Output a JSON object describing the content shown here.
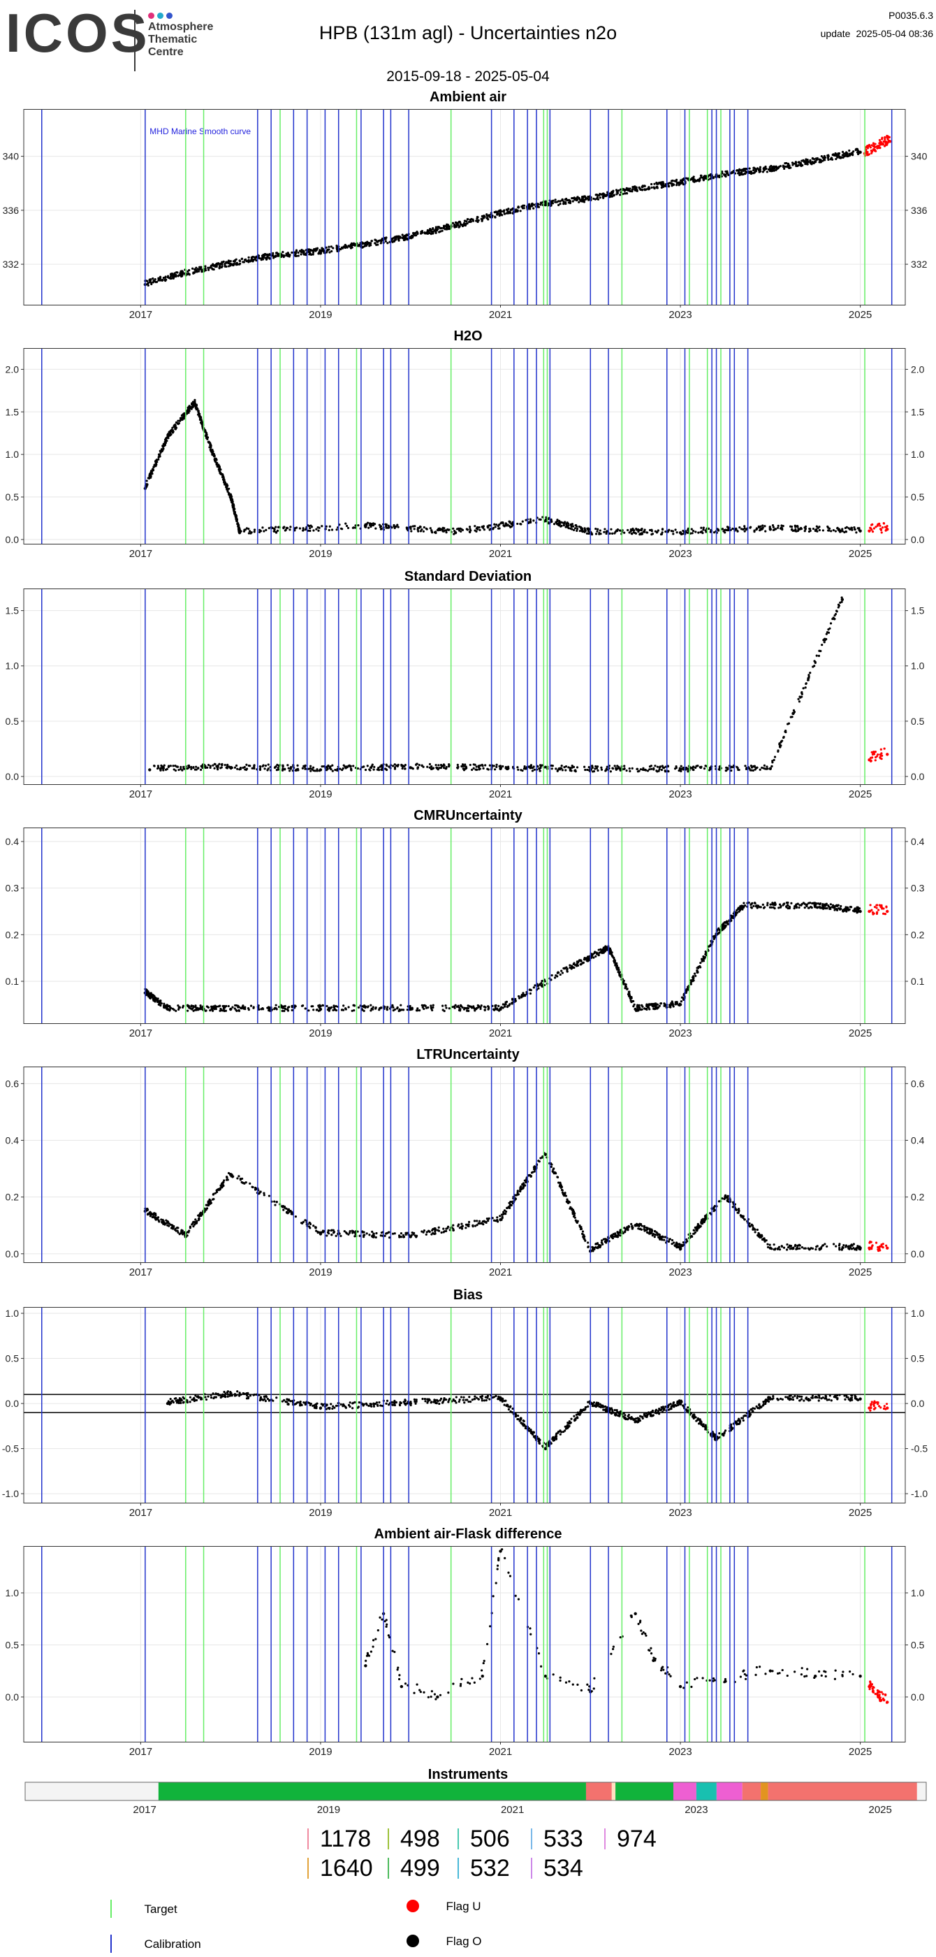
{
  "header": {
    "logo": "ICOS",
    "logo_sub": [
      "Atmosphere",
      "Thematic",
      "Centre"
    ],
    "logo_dot_colors": [
      "#e0307a",
      "#22aacc",
      "#3355cc"
    ],
    "title": "HPB  (131m agl) - Uncertainties n2o",
    "date_range": "2015-09-18 - 2025-05-04",
    "version": "P0035.6.3",
    "update_label": "update",
    "update_time": "2025-05-04 08:36"
  },
  "chart_data": [
    {
      "type": "scatter",
      "title": "Ambient air",
      "annotation": "MHD Marine Smooth curve",
      "x_ticks": [
        "2017",
        "2019",
        "2021",
        "2023",
        "2025"
      ],
      "y_ticks": [
        332,
        336,
        340
      ],
      "ylim": [
        329,
        343.5
      ],
      "series": [
        {
          "points": [
            [
              2017.05,
              330.5
            ],
            [
              2017.5,
              331.3
            ],
            [
              2018.0,
              332.0
            ],
            [
              2018.5,
              332.6
            ],
            [
              2019.0,
              332.9
            ],
            [
              2019.5,
              333.4
            ],
            [
              2020.0,
              334.0
            ],
            [
              2020.5,
              334.8
            ],
            [
              2021.0,
              335.7
            ],
            [
              2021.5,
              336.4
            ],
            [
              2022.0,
              336.8
            ],
            [
              2022.5,
              337.5
            ],
            [
              2023.0,
              338.0
            ],
            [
              2023.5,
              338.6
            ],
            [
              2024.0,
              339.0
            ],
            [
              2024.5,
              339.6
            ],
            [
              2025.0,
              340.3
            ]
          ]
        },
        {
          "color": "red",
          "points": [
            [
              2025.05,
              340.2
            ],
            [
              2025.15,
              340.5
            ],
            [
              2025.25,
              340.9
            ],
            [
              2025.33,
              341.1
            ]
          ]
        }
      ]
    },
    {
      "type": "scatter",
      "title": "H2O",
      "x_ticks": [
        "2017",
        "2019",
        "2021",
        "2023",
        "2025"
      ],
      "y_ticks": [
        "0.0",
        "0.5",
        "1.0",
        "1.5",
        "2.0"
      ],
      "ylim": [
        -0.05,
        2.25
      ],
      "series": [
        {
          "points": [
            [
              2017.05,
              0.6
            ],
            [
              2017.3,
              1.2
            ],
            [
              2017.6,
              1.6
            ],
            [
              2017.8,
              1.0
            ],
            [
              2018.0,
              0.5
            ],
            [
              2018.1,
              0.08
            ],
            [
              2019.5,
              0.15
            ],
            [
              2020.5,
              0.08
            ],
            [
              2021.5,
              0.22
            ],
            [
              2022.0,
              0.08
            ],
            [
              2023.0,
              0.08
            ],
            [
              2024.0,
              0.12
            ],
            [
              2025.0,
              0.1
            ]
          ]
        },
        {
          "color": "red",
          "points": [
            [
              2025.1,
              0.1
            ],
            [
              2025.3,
              0.12
            ]
          ]
        }
      ]
    },
    {
      "type": "scatter",
      "title": "Standard Deviation",
      "x_ticks": [
        "2017",
        "2019",
        "2021",
        "2023",
        "2025"
      ],
      "y_ticks": [
        "0.0",
        "0.5",
        "1.0",
        "1.5"
      ],
      "ylim": [
        -0.07,
        1.7
      ],
      "series": [
        {
          "points": [
            [
              2017.1,
              0.06
            ],
            [
              2018.0,
              0.08
            ],
            [
              2019.0,
              0.06
            ],
            [
              2020.0,
              0.08
            ],
            [
              2021.0,
              0.07
            ],
            [
              2022.0,
              0.06
            ],
            [
              2023.0,
              0.06
            ],
            [
              2024.0,
              0.07
            ],
            [
              2024.8,
              1.6
            ]
          ]
        },
        {
          "color": "red",
          "points": [
            [
              2025.1,
              0.15
            ],
            [
              2025.3,
              0.2
            ]
          ]
        }
      ]
    },
    {
      "type": "scatter",
      "title": "CMRUncertainty",
      "x_ticks": [
        "2017",
        "2019",
        "2021",
        "2023",
        "2025"
      ],
      "y_ticks": [
        "0.1",
        "0.2",
        "0.3",
        "0.4"
      ],
      "ylim": [
        0.01,
        0.43
      ],
      "series": [
        {
          "points": [
            [
              2017.05,
              0.075
            ],
            [
              2017.3,
              0.04
            ],
            [
              2018.0,
              0.04
            ],
            [
              2019.0,
              0.04
            ],
            [
              2020.0,
              0.04
            ],
            [
              2021.0,
              0.04
            ],
            [
              2021.8,
              0.13
            ],
            [
              2022.2,
              0.17
            ],
            [
              2022.5,
              0.04
            ],
            [
              2023.0,
              0.05
            ],
            [
              2023.4,
              0.2
            ],
            [
              2023.7,
              0.26
            ],
            [
              2024.5,
              0.26
            ],
            [
              2025.0,
              0.25
            ]
          ]
        },
        {
          "color": "red",
          "points": [
            [
              2025.1,
              0.25
            ],
            [
              2025.3,
              0.25
            ]
          ]
        }
      ]
    },
    {
      "type": "scatter",
      "title": "LTRUncertainty",
      "x_ticks": [
        "2017",
        "2019",
        "2021",
        "2023",
        "2025"
      ],
      "y_ticks": [
        "0.0",
        "0.2",
        "0.4",
        "0.6"
      ],
      "ylim": [
        -0.03,
        0.66
      ],
      "series": [
        {
          "points": [
            [
              2017.05,
              0.15
            ],
            [
              2017.5,
              0.06
            ],
            [
              2018.0,
              0.28
            ],
            [
              2019.0,
              0.07
            ],
            [
              2020.0,
              0.06
            ],
            [
              2021.0,
              0.12
            ],
            [
              2021.5,
              0.35
            ],
            [
              2022.0,
              0.01
            ],
            [
              2022.5,
              0.1
            ],
            [
              2023.0,
              0.02
            ],
            [
              2023.5,
              0.2
            ],
            [
              2024.0,
              0.02
            ],
            [
              2025.0,
              0.02
            ]
          ]
        },
        {
          "color": "red",
          "points": [
            [
              2025.1,
              0.02
            ],
            [
              2025.3,
              0.02
            ]
          ]
        }
      ]
    },
    {
      "type": "scatter",
      "title": "Bias",
      "x_ticks": [
        "2017",
        "2019",
        "2021",
        "2023",
        "2025"
      ],
      "y_ticks": [
        "-1.0",
        "-0.5",
        "0.0",
        "0.5",
        "1.0"
      ],
      "ylim": [
        -1.1,
        1.07
      ],
      "hlines": [
        0.1,
        -0.1
      ],
      "series": [
        {
          "points": [
            [
              2017.3,
              0.0
            ],
            [
              2018.0,
              0.1
            ],
            [
              2019.0,
              -0.05
            ],
            [
              2020.0,
              0.0
            ],
            [
              2021.0,
              0.05
            ],
            [
              2021.5,
              -0.5
            ],
            [
              2022.0,
              0.0
            ],
            [
              2022.5,
              -0.2
            ],
            [
              2023.0,
              0.0
            ],
            [
              2023.4,
              -0.4
            ],
            [
              2024.0,
              0.05
            ],
            [
              2025.0,
              0.05
            ]
          ]
        },
        {
          "color": "red",
          "points": [
            [
              2025.1,
              -0.05
            ],
            [
              2025.3,
              -0.05
            ]
          ]
        }
      ]
    },
    {
      "type": "scatter",
      "title": "Ambient air-Flask difference",
      "x_ticks": [
        "2017",
        "2019",
        "2021",
        "2023",
        "2025"
      ],
      "y_ticks": [
        "0.0",
        "0.5",
        "1.0"
      ],
      "ylim": [
        -0.43,
        1.45
      ],
      "series": [
        {
          "points": [
            [
              2019.5,
              0.3
            ],
            [
              2019.7,
              0.8
            ],
            [
              2019.9,
              0.1
            ],
            [
              2020.3,
              0.0
            ],
            [
              2020.8,
              0.2
            ],
            [
              2021.0,
              1.4
            ],
            [
              2021.5,
              0.2
            ],
            [
              2022.0,
              0.05
            ],
            [
              2022.5,
              0.8
            ],
            [
              2022.7,
              0.35
            ],
            [
              2023.0,
              0.1
            ],
            [
              2023.5,
              0.15
            ],
            [
              2024.0,
              0.25
            ],
            [
              2024.5,
              0.2
            ],
            [
              2025.0,
              0.2
            ]
          ]
        },
        {
          "color": "red",
          "points": [
            [
              2025.1,
              0.1
            ],
            [
              2025.2,
              0.0
            ],
            [
              2025.3,
              -0.05
            ]
          ]
        }
      ]
    }
  ],
  "calibration_lines": [
    2015.9,
    2017.05,
    2018.3,
    2018.45,
    2018.7,
    2018.85,
    2019.05,
    2019.2,
    2019.45,
    2019.7,
    2019.78,
    2019.98,
    2020.9,
    2021.15,
    2021.3,
    2021.4,
    2021.55,
    2022.0,
    2022.2,
    2022.85,
    2023.05,
    2023.35,
    2023.4,
    2023.55,
    2023.6,
    2023.75,
    2025.35
  ],
  "target_lines": [
    2017.5,
    2017.7,
    2018.55,
    2019.4,
    2020.45,
    2021.48,
    2021.52,
    2022.35,
    2023.1,
    2023.3,
    2023.45,
    2025.05
  ],
  "instruments": {
    "title": "Instruments",
    "x_ticks": [
      "2017",
      "2019",
      "2021",
      "2023",
      "2025"
    ],
    "segments": [
      {
        "start": 2015.7,
        "end": 2017.15,
        "color": "#f4f4f4"
      },
      {
        "start": 2017.15,
        "end": 2021.8,
        "color": "#11b33b"
      },
      {
        "start": 2021.8,
        "end": 2022.08,
        "color": "#f3726e"
      },
      {
        "start": 2022.08,
        "end": 2022.12,
        "color": "#ffe0c0"
      },
      {
        "start": 2022.12,
        "end": 2022.75,
        "color": "#11b33b"
      },
      {
        "start": 2022.75,
        "end": 2023.0,
        "color": "#ee5fd2"
      },
      {
        "start": 2023.0,
        "end": 2023.22,
        "color": "#18c0b0"
      },
      {
        "start": 2023.22,
        "end": 2023.5,
        "color": "#ee5fd2"
      },
      {
        "start": 2023.5,
        "end": 2023.7,
        "color": "#f3726e"
      },
      {
        "start": 2023.7,
        "end": 2023.78,
        "color": "#e29420"
      },
      {
        "start": 2023.78,
        "end": 2025.4,
        "color": "#f3726e"
      },
      {
        "start": 2025.4,
        "end": 2025.5,
        "color": "#f4f4f4"
      }
    ]
  },
  "instrument_legend": [
    {
      "label": "1178",
      "color": "#f08aa0"
    },
    {
      "label": "498",
      "color": "#9cc23a"
    },
    {
      "label": "506",
      "color": "#48c9b0"
    },
    {
      "label": "533",
      "color": "#7ab8e8"
    },
    {
      "label": "974",
      "color": "#e08ae0"
    },
    {
      "label": "1640",
      "color": "#e2a33a"
    },
    {
      "label": "499",
      "color": "#4cbb5c"
    },
    {
      "label": "532",
      "color": "#48b8d8"
    },
    {
      "label": "534",
      "color": "#cc88e8"
    }
  ],
  "legend": {
    "target_label": "Target",
    "target_color": "#66ee66",
    "calibration_label": "Calibration",
    "calibration_color": "#2233cc",
    "flag_u_label": "Flag U",
    "flag_u_color": "#ff0000",
    "flag_o_label": "Flag O",
    "flag_o_color": "#000000"
  }
}
